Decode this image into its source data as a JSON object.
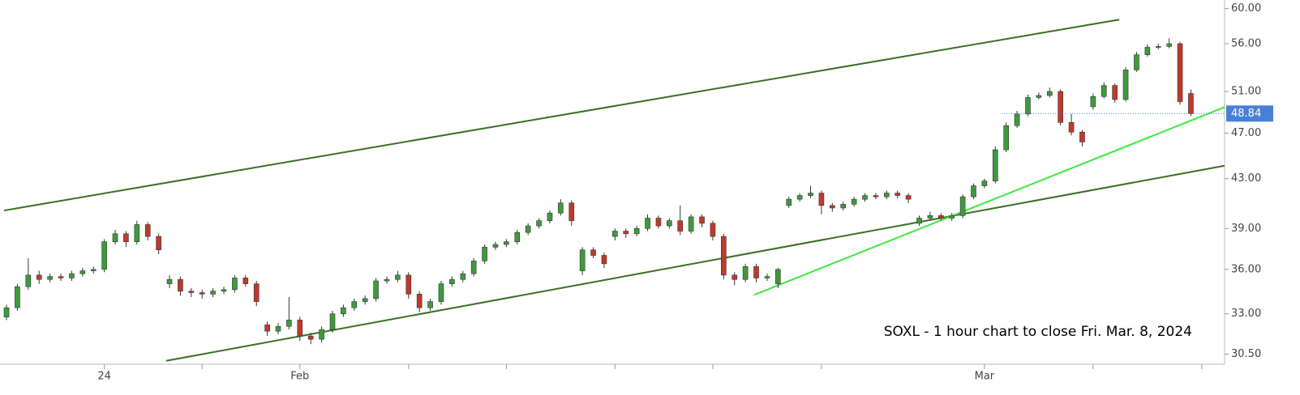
{
  "chart_data": {
    "type": "candlestick",
    "annotation": "SOXL - 1 hour chart to close Fri. Mar. 8, 2024",
    "categories": [
      null,
      null,
      null,
      null,
      null,
      null,
      null,
      null,
      null,
      "24",
      null,
      null,
      null,
      null,
      null,
      null,
      null,
      null,
      null,
      null,
      null,
      null,
      null,
      null,
      null,
      null,
      null,
      "Feb",
      null,
      null,
      null,
      null,
      null,
      null,
      null,
      null,
      null,
      null,
      null,
      null,
      null,
      null,
      null,
      null,
      null,
      null,
      null,
      null,
      null,
      null,
      null,
      null,
      null,
      null,
      null,
      null,
      null,
      null,
      null,
      null,
      null,
      null,
      null,
      null,
      null,
      null,
      null,
      null,
      null,
      null,
      null,
      null,
      null,
      null,
      null,
      null,
      null,
      null,
      null,
      null,
      null,
      null,
      null,
      null,
      null,
      null,
      null,
      null,
      null,
      null,
      "Mar",
      null,
      null,
      null,
      null,
      null,
      null,
      null,
      null,
      null,
      null,
      null,
      null,
      null,
      null,
      null,
      null,
      null,
      null,
      null
    ],
    "xticks": [
      9,
      18,
      27,
      37,
      46,
      56,
      65,
      75,
      90,
      100,
      110
    ],
    "xlim": [
      -0.6,
      112.1
    ],
    "open": [
      32.8,
      33.4,
      34.8,
      35.6,
      35.3,
      35.5,
      35.4,
      35.7,
      35.9,
      36.0,
      38.0,
      38.6,
      38.0,
      39.3,
      38.4,
      35.0,
      35.3,
      34.5,
      34.4,
      34.3,
      34.5,
      34.6,
      35.4,
      35.0,
      32.3,
      31.9,
      32.2,
      32.6,
      31.6,
      31.4,
      32.0,
      33.0,
      33.4,
      33.8,
      34.0,
      35.2,
      35.3,
      35.6,
      34.3,
      33.4,
      33.8,
      35.0,
      35.3,
      35.7,
      36.6,
      37.6,
      37.8,
      38.0,
      38.7,
      39.2,
      39.6,
      40.2,
      41.0,
      35.9,
      37.4,
      37.0,
      38.4,
      38.8,
      38.6,
      39.0,
      39.8,
      39.2,
      39.6,
      38.8,
      39.9,
      39.4,
      38.4,
      35.6,
      35.3,
      36.2,
      35.4,
      35.0,
      40.8,
      41.3,
      41.6,
      41.8,
      40.8,
      40.6,
      40.9,
      41.3,
      41.6,
      41.5,
      41.8,
      41.6,
      39.4,
      39.8,
      40.0,
      39.8,
      40.0,
      41.5,
      42.4,
      42.8,
      45.5,
      47.7,
      48.8,
      50.4,
      50.6,
      51.0,
      48.0,
      47.1,
      49.5,
      50.5,
      51.6,
      50.2,
      53.2,
      54.8,
      55.6,
      55.7,
      56.0,
      50.8
    ],
    "high": [
      33.6,
      35.0,
      36.8,
      35.9,
      35.7,
      35.7,
      35.9,
      36.1,
      36.2,
      38.2,
      38.9,
      38.8,
      39.6,
      39.5,
      38.6,
      35.6,
      35.5,
      34.7,
      34.6,
      34.7,
      34.8,
      35.6,
      35.6,
      35.2,
      32.5,
      32.4,
      34.1,
      32.8,
      31.8,
      32.2,
      33.2,
      33.6,
      34.0,
      34.2,
      35.4,
      35.5,
      35.9,
      35.8,
      34.5,
      34.0,
      35.2,
      35.5,
      35.9,
      36.8,
      37.8,
      38.0,
      38.2,
      38.9,
      39.4,
      39.8,
      40.4,
      41.3,
      41.2,
      37.6,
      37.6,
      37.2,
      39.0,
      39.0,
      39.2,
      40.1,
      40.0,
      39.8,
      40.8,
      40.1,
      40.1,
      39.6,
      38.6,
      35.8,
      36.4,
      36.4,
      35.7,
      36.1,
      41.5,
      41.8,
      42.4,
      42.0,
      41.0,
      41.1,
      41.5,
      41.8,
      41.8,
      42.0,
      42.0,
      41.8,
      40.0,
      40.3,
      40.2,
      40.2,
      41.7,
      42.6,
      43.0,
      45.8,
      48.0,
      49.1,
      50.7,
      50.9,
      51.4,
      51.2,
      48.8,
      47.3,
      50.8,
      51.9,
      51.8,
      53.5,
      55.1,
      55.9,
      56.0,
      56.6,
      56.2,
      51.2
    ],
    "low": [
      32.6,
      33.2,
      34.6,
      35.0,
      35.1,
      35.2,
      35.2,
      35.5,
      35.7,
      35.8,
      37.8,
      37.6,
      37.8,
      38.1,
      37.1,
      34.7,
      34.2,
      34.1,
      34.0,
      34.1,
      34.3,
      34.4,
      34.8,
      33.5,
      31.6,
      31.7,
      32.0,
      31.3,
      31.1,
      31.2,
      31.8,
      32.8,
      33.2,
      33.6,
      33.8,
      35.0,
      35.1,
      34.0,
      33.1,
      33.2,
      33.6,
      34.8,
      35.1,
      35.5,
      36.4,
      37.4,
      37.6,
      37.8,
      38.5,
      39.0,
      39.4,
      40.0,
      39.2,
      35.6,
      36.8,
      36.1,
      38.1,
      38.3,
      38.4,
      38.8,
      39.0,
      39.0,
      38.5,
      38.6,
      39.1,
      38.1,
      35.3,
      34.9,
      35.1,
      35.1,
      35.2,
      34.7,
      40.6,
      41.1,
      41.4,
      40.1,
      40.3,
      40.4,
      40.7,
      41.1,
      41.3,
      41.3,
      41.4,
      41.0,
      39.2,
      39.6,
      39.6,
      39.6,
      39.8,
      41.3,
      42.2,
      42.6,
      45.3,
      47.5,
      48.6,
      50.2,
      50.4,
      47.7,
      46.8,
      45.8,
      49.2,
      50.3,
      49.9,
      50.0,
      53.0,
      54.6,
      55.4,
      55.5,
      49.7,
      48.6
    ],
    "close": [
      33.4,
      34.8,
      35.6,
      35.3,
      35.5,
      35.4,
      35.7,
      35.9,
      36.0,
      38.0,
      38.6,
      38.0,
      39.3,
      38.4,
      37.4,
      35.3,
      34.5,
      34.4,
      34.3,
      34.5,
      34.6,
      35.4,
      35.0,
      33.8,
      31.9,
      32.2,
      32.6,
      31.6,
      31.4,
      32.0,
      33.0,
      33.4,
      33.8,
      34.0,
      35.2,
      35.3,
      35.6,
      34.3,
      33.4,
      33.8,
      35.0,
      35.3,
      35.7,
      36.6,
      37.6,
      37.8,
      38.0,
      38.7,
      39.2,
      39.6,
      40.2,
      41.0,
      39.6,
      37.4,
      37.0,
      36.4,
      38.8,
      38.6,
      39.0,
      39.8,
      39.2,
      39.6,
      38.8,
      39.9,
      39.4,
      38.4,
      35.6,
      35.3,
      36.2,
      35.4,
      35.5,
      36.0,
      41.3,
      41.6,
      41.8,
      40.8,
      40.6,
      40.9,
      41.3,
      41.6,
      41.5,
      41.8,
      41.6,
      41.3,
      39.8,
      40.0,
      39.8,
      40.0,
      41.5,
      42.4,
      42.8,
      45.5,
      47.7,
      48.8,
      50.4,
      50.6,
      51.0,
      48.0,
      47.1,
      46.2,
      50.5,
      51.6,
      50.2,
      53.2,
      54.8,
      55.6,
      55.7,
      56.0,
      50.0,
      48.84
    ],
    "up_color": "#3d9b3d",
    "down_color": "#c0392b",
    "ylog": true,
    "ylim": [
      29.9,
      61
    ],
    "yticks": [
      {
        "value": 30.5,
        "label": "30.50"
      },
      {
        "value": 33,
        "label": "33.00"
      },
      {
        "value": 36,
        "label": "36.00"
      },
      {
        "value": 39,
        "label": "39.00"
      },
      {
        "value": 43,
        "label": "43.00"
      },
      {
        "value": 47,
        "label": "47.00"
      },
      {
        "value": 51,
        "label": "51.00"
      },
      {
        "value": 56,
        "label": "56.00"
      },
      {
        "value": 60,
        "label": "60.00"
      }
    ],
    "last_price": 48.84,
    "last_price_color": "#4a7fd6",
    "trendlines": [
      {
        "color": "#3b6e22",
        "x": [
          -0.22,
          102.4
        ],
        "y": [
          40.4,
          58.7
        ]
      },
      {
        "color": "#3b6e22",
        "x": [
          14.7,
          112.1
        ],
        "y": [
          30.1,
          44.1
        ]
      },
      {
        "color": "#3ee63e",
        "x": [
          68.8,
          112.1
        ],
        "y": [
          34.25,
          49.46
        ]
      }
    ]
  }
}
